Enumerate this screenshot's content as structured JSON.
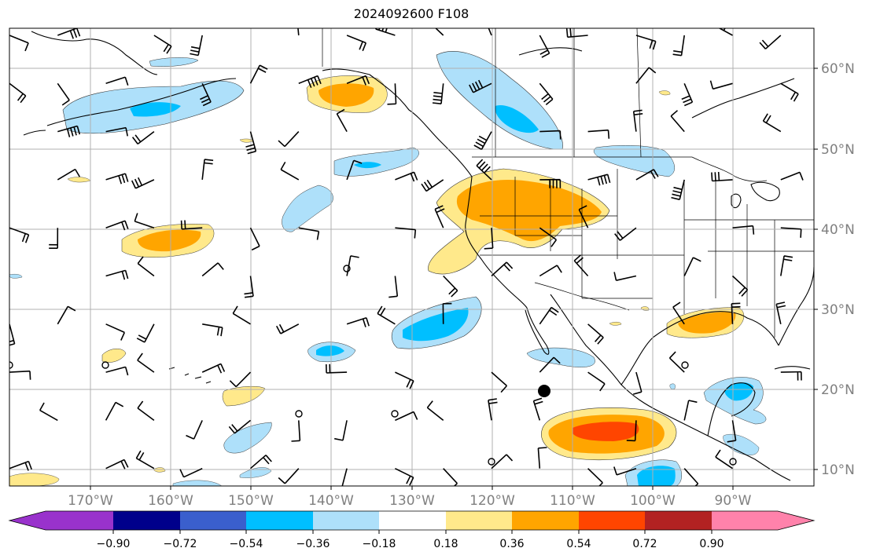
{
  "title": "2024092600 F108",
  "longitude_labels": [
    "170°W",
    "160°W",
    "150°W",
    "140°W",
    "130°W",
    "120°W",
    "110°W",
    "100°W",
    "90°W"
  ],
  "latitude_labels": [
    "60°N",
    "50°N",
    "40°N",
    "30°N",
    "20°N",
    "10°N"
  ],
  "colorbar": {
    "tick_labels": [
      "−0.90",
      "−0.72",
      "−0.54",
      "−0.36",
      "−0.18",
      "0.18",
      "0.36",
      "0.54",
      "0.72",
      "0.90"
    ],
    "colors": [
      "#9932cc",
      "#00008b",
      "#3a5fcd",
      "#00bfff",
      "#aee0fa",
      "#ffffff",
      "#ffe98b",
      "#ffa500",
      "#ff4500",
      "#b22222",
      "#ff82ab"
    ]
  },
  "colors": {
    "grid": "#b0b0b0",
    "coast": "#000000",
    "label": "#808080"
  }
}
